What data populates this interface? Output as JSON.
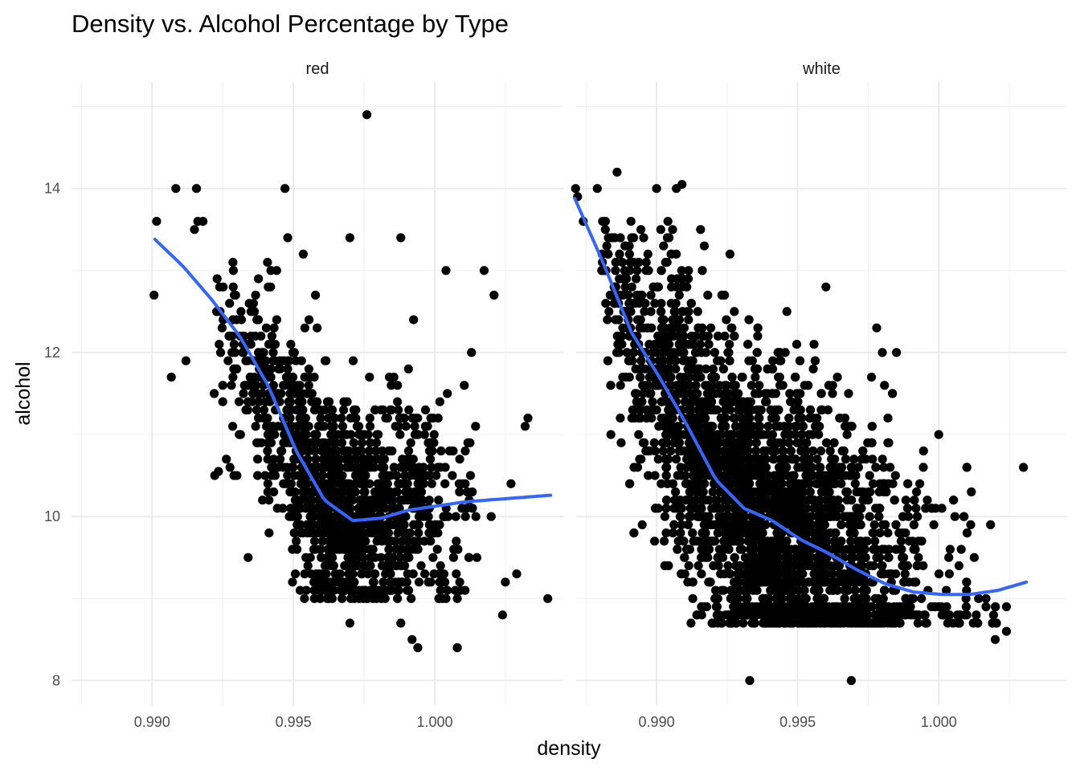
{
  "chart_data": {
    "type": "scatter",
    "title": "Density vs. Alcohol Percentage by Type",
    "xlabel": "density",
    "ylabel": "alcohol",
    "ylim": [
      7.7,
      15.3
    ],
    "y_ticks": [
      8,
      10,
      12,
      14
    ],
    "grid": true,
    "smooth_color": "#3366ff",
    "point_color": "#000000",
    "panels": [
      {
        "name": "red",
        "xlim": [
          0.98715,
          1.00455
        ],
        "x_ticks": [
          0.99,
          0.995,
          1.0
        ],
        "x_tick_labels": [
          "0.990",
          "0.995",
          "1.000"
        ],
        "smooth": [
          [
            0.9901,
            13.38
          ],
          [
            0.9911,
            13.05
          ],
          [
            0.9921,
            12.65
          ],
          [
            0.9931,
            12.2
          ],
          [
            0.9941,
            11.6
          ],
          [
            0.9951,
            10.8
          ],
          [
            0.9961,
            10.2
          ],
          [
            0.9971,
            9.95
          ],
          [
            0.9981,
            9.98
          ],
          [
            0.9991,
            10.08
          ],
          [
            1.0011,
            10.18
          ],
          [
            1.0041,
            10.26
          ]
        ],
        "outliers": [
          [
            0.99007,
            12.7
          ],
          [
            0.99016,
            13.6
          ],
          [
            0.99068,
            11.7
          ],
          [
            0.99084,
            14.0
          ],
          [
            0.9912,
            11.9
          ],
          [
            0.9915,
            13.5
          ],
          [
            0.99157,
            14.0
          ],
          [
            0.99162,
            13.6
          ],
          [
            0.9918,
            13.6
          ],
          [
            0.9922,
            11.5
          ],
          [
            0.99235,
            10.55
          ],
          [
            0.993,
            10.5
          ],
          [
            0.9934,
            9.5
          ],
          [
            0.994,
            10.5
          ],
          [
            0.9941,
            10.4
          ],
          [
            0.9947,
            14.0
          ],
          [
            0.9948,
            13.4
          ],
          [
            0.99535,
            13.2
          ],
          [
            0.997,
            13.4
          ],
          [
            0.9976,
            14.9
          ],
          [
            0.9988,
            13.4
          ],
          [
            0.997,
            8.7
          ],
          [
            0.9988,
            8.7
          ],
          [
            0.9992,
            8.5
          ],
          [
            0.9994,
            8.4
          ],
          [
            1.0008,
            8.4
          ],
          [
            1.0004,
            13.0
          ],
          [
            1.00175,
            13.0
          ],
          [
            1.0021,
            12.7
          ],
          [
            1.0013,
            12.0
          ],
          [
            1.0033,
            11.2
          ],
          [
            1.0032,
            11.1
          ],
          [
            1.0027,
            10.4
          ],
          [
            1.002,
            10.0
          ],
          [
            1.0025,
            9.2
          ],
          [
            1.0029,
            9.3
          ],
          [
            1.0024,
            8.8
          ],
          [
            1.004,
            9.0
          ],
          [
            1.0004,
            9.0
          ],
          [
            1.0008,
            9.0
          ]
        ]
      },
      {
        "name": "white",
        "xlim": [
          0.98715,
          1.00455
        ],
        "x_ticks": [
          0.99,
          0.995,
          1.0
        ],
        "x_tick_labels": [
          "0.990",
          "0.995",
          "1.000"
        ],
        "smooth": [
          [
            0.9871,
            13.88
          ],
          [
            0.9881,
            13.1
          ],
          [
            0.9891,
            12.25
          ],
          [
            0.9901,
            11.7
          ],
          [
            0.9911,
            11.1
          ],
          [
            0.9921,
            10.45
          ],
          [
            0.9931,
            10.1
          ],
          [
            0.9941,
            9.95
          ],
          [
            0.9951,
            9.72
          ],
          [
            0.9961,
            9.55
          ],
          [
            0.9971,
            9.35
          ],
          [
            0.9981,
            9.18
          ],
          [
            0.9991,
            9.08
          ],
          [
            1.0001,
            9.05
          ],
          [
            1.0011,
            9.05
          ],
          [
            1.0021,
            9.1
          ],
          [
            1.0031,
            9.2
          ]
        ],
        "outliers": [
          [
            0.98713,
            14.0
          ],
          [
            0.9872,
            13.9
          ],
          [
            0.9874,
            13.6
          ],
          [
            0.9879,
            14.0
          ],
          [
            0.9886,
            14.2
          ],
          [
            0.99,
            14.0
          ],
          [
            0.9909,
            14.05
          ],
          [
            0.9907,
            14.0
          ],
          [
            0.9969,
            8.0
          ],
          [
            0.9933,
            8.0
          ],
          [
            1.003,
            10.6
          ],
          [
            1.002,
            8.5
          ],
          [
            1.0024,
            8.6
          ],
          [
            1.0024,
            8.9
          ],
          [
            1.0,
            11.0
          ],
          [
            0.996,
            12.8
          ],
          [
            0.9978,
            12.3
          ],
          [
            0.998,
            12.0
          ],
          [
            0.9985,
            12.0
          ],
          [
            0.9982,
            11.2
          ],
          [
            0.9897,
            10.8
          ],
          [
            0.9894,
            10.7
          ],
          [
            0.9888,
            11.7
          ]
        ]
      }
    ]
  }
}
